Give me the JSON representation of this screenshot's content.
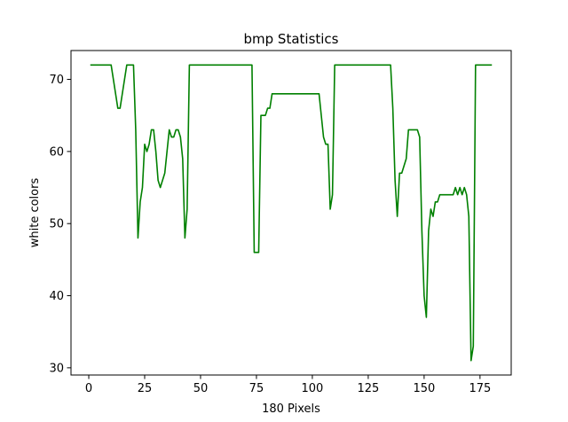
{
  "chart_data": {
    "type": "line",
    "title": "bmp Statistics",
    "xlabel": "180 Pixels",
    "ylabel": "white colors",
    "xlim": [
      -7.95,
      188.95
    ],
    "ylim": [
      29.0,
      74.0
    ],
    "xticks": [
      0,
      25,
      50,
      75,
      100,
      125,
      150,
      175
    ],
    "yticks": [
      30,
      40,
      50,
      60,
      70
    ],
    "grid": false,
    "legend": "none",
    "series": [
      {
        "color": "#008000",
        "x": [
          1,
          2,
          3,
          4,
          5,
          6,
          7,
          8,
          9,
          10,
          11,
          12,
          13,
          14,
          15,
          16,
          17,
          18,
          19,
          20,
          21,
          22,
          23,
          24,
          25,
          26,
          27,
          28,
          29,
          30,
          31,
          32,
          33,
          34,
          35,
          36,
          37,
          38,
          39,
          40,
          41,
          42,
          43,
          44,
          45,
          46,
          47,
          48,
          49,
          50,
          51,
          52,
          53,
          54,
          55,
          56,
          57,
          58,
          59,
          60,
          61,
          62,
          63,
          64,
          65,
          66,
          67,
          68,
          69,
          70,
          71,
          72,
          73,
          74,
          75,
          76,
          77,
          78,
          79,
          80,
          81,
          82,
          83,
          84,
          85,
          86,
          87,
          88,
          89,
          90,
          91,
          92,
          93,
          94,
          95,
          96,
          97,
          98,
          99,
          100,
          101,
          102,
          103,
          104,
          105,
          106,
          107,
          108,
          109,
          110,
          111,
          112,
          113,
          114,
          115,
          116,
          117,
          118,
          119,
          120,
          121,
          122,
          123,
          124,
          125,
          126,
          127,
          128,
          129,
          130,
          131,
          132,
          133,
          134,
          135,
          136,
          137,
          138,
          139,
          140,
          141,
          142,
          143,
          144,
          145,
          146,
          147,
          148,
          149,
          150,
          151,
          152,
          153,
          154,
          155,
          156,
          157,
          158,
          159,
          160,
          161,
          162,
          163,
          164,
          165,
          166,
          167,
          168,
          169,
          170,
          171,
          172,
          173,
          174,
          175,
          176,
          177,
          178,
          179,
          180
        ],
        "y": [
          72,
          72,
          72,
          72,
          72,
          72,
          72,
          72,
          72,
          72,
          70,
          68,
          66,
          66,
          68,
          70,
          72,
          72,
          72,
          72,
          63,
          48,
          53,
          55,
          61,
          60,
          61,
          63,
          63,
          60,
          56,
          55,
          56,
          57,
          60,
          63,
          62,
          62,
          63,
          63,
          62,
          59,
          48,
          52,
          72,
          72,
          72,
          72,
          72,
          72,
          72,
          72,
          72,
          72,
          72,
          72,
          72,
          72,
          72,
          72,
          72,
          72,
          72,
          72,
          72,
          72,
          72,
          72,
          72,
          72,
          72,
          72,
          72,
          46,
          46,
          46,
          65,
          65,
          65,
          66,
          66,
          68,
          68,
          68,
          68,
          68,
          68,
          68,
          68,
          68,
          68,
          68,
          68,
          68,
          68,
          68,
          68,
          68,
          68,
          68,
          68,
          68,
          68,
          65,
          62,
          61,
          61,
          52,
          54,
          72,
          72,
          72,
          72,
          72,
          72,
          72,
          72,
          72,
          72,
          72,
          72,
          72,
          72,
          72,
          72,
          72,
          72,
          72,
          72,
          72,
          72,
          72,
          72,
          72,
          72,
          66,
          56,
          51,
          57,
          57,
          58,
          59,
          63,
          63,
          63,
          63,
          63,
          62,
          49,
          40,
          37,
          49,
          52,
          51,
          53,
          53,
          54,
          54,
          54,
          54,
          54,
          54,
          54,
          55,
          54,
          55,
          54,
          55,
          54,
          51,
          31,
          33,
          72,
          72,
          72,
          72,
          72,
          72,
          72,
          72
        ]
      }
    ]
  }
}
